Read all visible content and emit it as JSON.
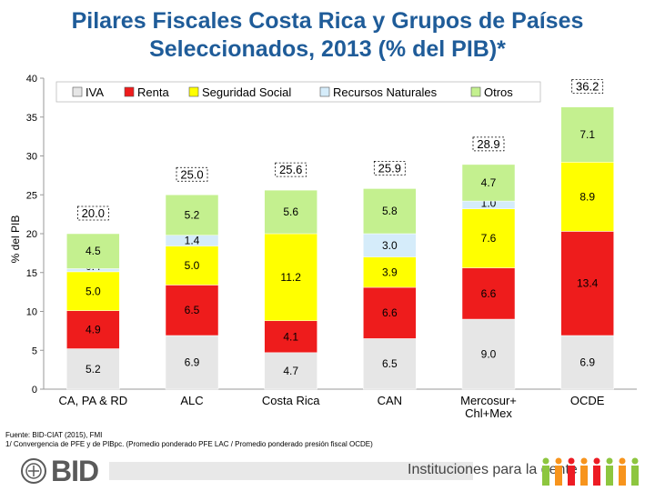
{
  "slide": {
    "title_line1": "Pilares Fiscales Costa Rica y Grupos de Países",
    "title_line2": "Seleccionados, 2013 (% del PIB)*",
    "source_line1": "Fuente: BID-CIAT (2015), FMI",
    "source_line2": "1/ Convergencia de PFE y de PIBpc. (Promedio ponderado PFE LAC / Promedio ponderado presión fiscal OCDE)",
    "logo_text": "BID",
    "tagline": "Instituciones para la gente"
  },
  "chart_data": {
    "type": "bar",
    "stacked": true,
    "ylabel": "% del PIB",
    "ylim": [
      0,
      40
    ],
    "yticks": [
      0,
      5,
      10,
      15,
      20,
      25,
      30,
      35,
      40
    ],
    "grid": false,
    "legend_position": "top",
    "categories": [
      "CA, PA & RD",
      "ALC",
      "Costa Rica",
      "CAN",
      "Mercosur+ Chl+Mex",
      "OCDE"
    ],
    "series": [
      {
        "name": "IVA",
        "color": "#e6e6e6",
        "values": [
          5.2,
          6.9,
          4.7,
          6.5,
          9.0,
          6.9
        ]
      },
      {
        "name": "Renta",
        "color": "#ee1c1c",
        "values": [
          4.9,
          6.5,
          4.1,
          6.6,
          6.6,
          13.4
        ]
      },
      {
        "name": "Seguridad Social",
        "color": "#ffff00",
        "values": [
          5.0,
          5.0,
          11.2,
          3.9,
          7.6,
          8.9
        ]
      },
      {
        "name": "Recursos Naturales",
        "color": "#d5ecfa",
        "values": [
          0.4,
          1.4,
          0,
          3.0,
          1.0,
          0
        ]
      },
      {
        "name": "Otros",
        "color": "#c4f08f",
        "values": [
          4.5,
          5.2,
          5.6,
          5.8,
          4.7,
          7.1
        ]
      }
    ],
    "segment_labels": [
      [
        "5.2",
        "4.9",
        "5.0",
        "0.4",
        "4.5"
      ],
      [
        "6.9",
        "6.5",
        "5.0",
        "1.4",
        "5.2"
      ],
      [
        "4.7",
        "4.1",
        "11.2",
        "",
        "5.6"
      ],
      [
        "6.5",
        "6.6",
        "3.9",
        "3.0",
        "5.8"
      ],
      [
        "9.0",
        "6.6",
        "7.6",
        "1.0",
        "4.7"
      ],
      [
        "6.9",
        "13.4",
        "8.9",
        "",
        "7.1"
      ]
    ],
    "totals": [
      "20.0",
      "25.0",
      "25.6",
      "25.9",
      "28.9",
      "36.2"
    ]
  }
}
